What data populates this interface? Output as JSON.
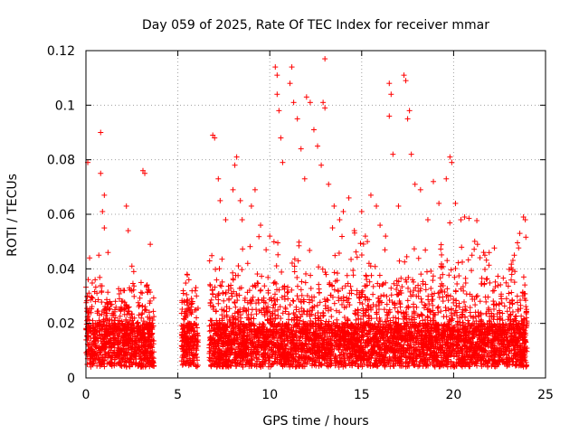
{
  "chart_data": {
    "type": "scatter",
    "title": "Day 059 of 2025, Rate Of TEC Index for receiver mmar",
    "xlabel": "GPS time / hours",
    "ylabel": "ROTI / TECUs",
    "xlim": [
      0,
      25
    ],
    "ylim": [
      0,
      0.12
    ],
    "x_ticks": [
      0,
      5,
      10,
      15,
      20,
      25
    ],
    "x_tick_labels": [
      "0",
      "5",
      "10",
      "15",
      "20",
      "25"
    ],
    "y_ticks": [
      0,
      0.02,
      0.04,
      0.06,
      0.08,
      0.1,
      0.12
    ],
    "y_tick_labels": [
      "0",
      "0.02",
      "0.04",
      "0.06",
      "0.08",
      "0.1",
      "0.12"
    ],
    "grid": true,
    "marker": "plus",
    "color": "#ff0000",
    "segments": [
      {
        "start": 0.0,
        "end": 3.7
      },
      {
        "start": 5.2,
        "end": 6.1
      },
      {
        "start": 6.7,
        "end": 24.0
      }
    ],
    "series": [
      {
        "values": [
          [
            0.1,
            0.079
          ],
          [
            0.2,
            0.044
          ],
          [
            0.5,
            0.036
          ],
          [
            0.7,
            0.045
          ],
          [
            0.8,
            0.09
          ],
          [
            0.8,
            0.075
          ],
          [
            0.9,
            0.061
          ],
          [
            1.0,
            0.067
          ],
          [
            1.0,
            0.055
          ],
          [
            1.2,
            0.046
          ],
          [
            1.3,
            0.028
          ],
          [
            1.6,
            0.019
          ],
          [
            2.0,
            0.018
          ],
          [
            2.2,
            0.063
          ],
          [
            2.3,
            0.054
          ],
          [
            2.5,
            0.041
          ],
          [
            2.6,
            0.039
          ],
          [
            3.0,
            0.035
          ],
          [
            3.1,
            0.076
          ],
          [
            3.2,
            0.075
          ],
          [
            3.5,
            0.049
          ],
          [
            3.6,
            0.02
          ],
          [
            5.3,
            0.031
          ],
          [
            5.5,
            0.038
          ],
          [
            5.6,
            0.036
          ],
          [
            5.8,
            0.028
          ],
          [
            6.0,
            0.025
          ],
          [
            6.9,
            0.089
          ],
          [
            7.0,
            0.088
          ],
          [
            7.2,
            0.073
          ],
          [
            7.3,
            0.065
          ],
          [
            7.6,
            0.058
          ],
          [
            8.0,
            0.069
          ],
          [
            8.1,
            0.078
          ],
          [
            8.2,
            0.081
          ],
          [
            8.4,
            0.065
          ],
          [
            8.5,
            0.058
          ],
          [
            8.8,
            0.042
          ],
          [
            9.0,
            0.063
          ],
          [
            9.2,
            0.069
          ],
          [
            9.5,
            0.056
          ],
          [
            9.8,
            0.047
          ],
          [
            10.0,
            0.052
          ],
          [
            10.3,
            0.114
          ],
          [
            10.4,
            0.111
          ],
          [
            10.4,
            0.104
          ],
          [
            10.5,
            0.098
          ],
          [
            10.6,
            0.088
          ],
          [
            10.7,
            0.079
          ],
          [
            11.1,
            0.108
          ],
          [
            11.2,
            0.114
          ],
          [
            11.3,
            0.101
          ],
          [
            11.5,
            0.095
          ],
          [
            11.7,
            0.084
          ],
          [
            11.9,
            0.073
          ],
          [
            12.0,
            0.103
          ],
          [
            12.2,
            0.101
          ],
          [
            12.4,
            0.091
          ],
          [
            12.6,
            0.085
          ],
          [
            12.8,
            0.078
          ],
          [
            12.9,
            0.101
          ],
          [
            13.0,
            0.099
          ],
          [
            13.0,
            0.117
          ],
          [
            13.2,
            0.071
          ],
          [
            13.5,
            0.063
          ],
          [
            13.8,
            0.058
          ],
          [
            14.0,
            0.061
          ],
          [
            14.3,
            0.066
          ],
          [
            14.6,
            0.054
          ],
          [
            15.0,
            0.061
          ],
          [
            15.2,
            0.052
          ],
          [
            15.5,
            0.067
          ],
          [
            15.8,
            0.063
          ],
          [
            16.0,
            0.056
          ],
          [
            16.3,
            0.052
          ],
          [
            16.5,
            0.108
          ],
          [
            16.6,
            0.104
          ],
          [
            16.5,
            0.096
          ],
          [
            16.7,
            0.082
          ],
          [
            17.0,
            0.063
          ],
          [
            17.3,
            0.111
          ],
          [
            17.4,
            0.109
          ],
          [
            17.5,
            0.095
          ],
          [
            17.6,
            0.098
          ],
          [
            17.7,
            0.082
          ],
          [
            17.9,
            0.071
          ],
          [
            18.2,
            0.069
          ],
          [
            18.6,
            0.058
          ],
          [
            18.9,
            0.072
          ],
          [
            19.2,
            0.064
          ],
          [
            19.6,
            0.073
          ],
          [
            19.8,
            0.081
          ],
          [
            19.9,
            0.079
          ],
          [
            20.1,
            0.064
          ],
          [
            20.4,
            0.058
          ],
          [
            20.6,
            0.059
          ],
          [
            21.0,
            0.045
          ],
          [
            21.3,
            0.049
          ],
          [
            21.7,
            0.045
          ],
          [
            22.2,
            0.032
          ],
          [
            22.6,
            0.029
          ],
          [
            23.0,
            0.031
          ],
          [
            23.3,
            0.045
          ],
          [
            23.6,
            0.053
          ],
          [
            23.8,
            0.059
          ],
          [
            23.9,
            0.058
          ]
        ]
      }
    ]
  }
}
